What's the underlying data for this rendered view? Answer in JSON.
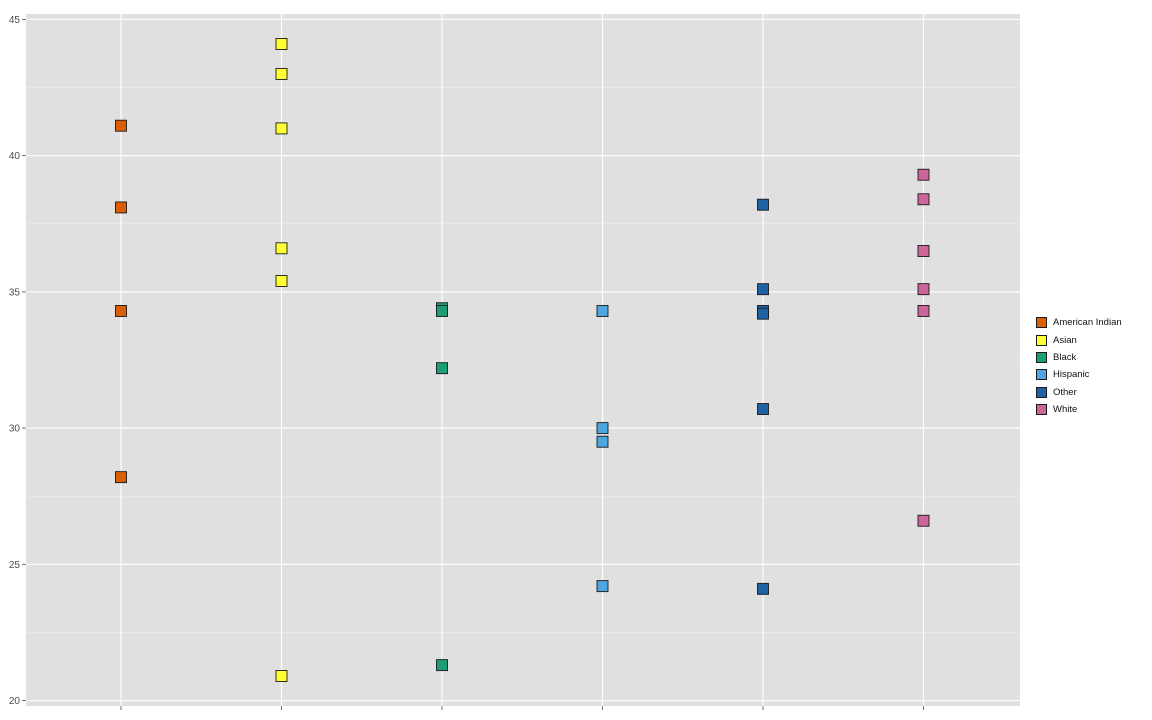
{
  "chart_data": {
    "type": "scatter",
    "title": "",
    "xlabel": "",
    "ylabel": "",
    "x_categories": [
      "American Indian",
      "Asian",
      "Black",
      "Hispanic",
      "Other",
      "White"
    ],
    "ylim": [
      19.8,
      45.2
    ],
    "y_ticks": [
      20,
      25,
      30,
      35,
      40,
      45
    ],
    "grid": true,
    "legend_position": "right",
    "marker": "square",
    "colors": {
      "panel_background": "#e0e0e0",
      "gridline": "#ffffff",
      "marker_outline": "#1a1a1a"
    },
    "series": [
      {
        "name": "American Indian",
        "color": "#d95f02",
        "x": "American Indian",
        "values": [
          41.1,
          38.1,
          34.3,
          28.2
        ]
      },
      {
        "name": "Asian",
        "color": "#ffff33",
        "x": "Asian",
        "values": [
          44.1,
          43.0,
          41.0,
          36.6,
          35.4,
          20.9
        ]
      },
      {
        "name": "Black",
        "color": "#1b9e77",
        "x": "Black",
        "values": [
          34.4,
          34.3,
          32.2,
          21.3
        ]
      },
      {
        "name": "Hispanic",
        "color": "#4da6e0",
        "x": "Hispanic",
        "values": [
          34.3,
          30.0,
          29.5,
          24.2
        ]
      },
      {
        "name": "Other",
        "color": "#1f62a3",
        "x": "Other",
        "values": [
          38.2,
          35.1,
          34.3,
          34.2,
          30.7,
          24.1
        ]
      },
      {
        "name": "White",
        "color": "#cc6699",
        "x": "White",
        "values": [
          39.3,
          38.4,
          36.5,
          35.1,
          34.3,
          26.6
        ]
      }
    ]
  }
}
